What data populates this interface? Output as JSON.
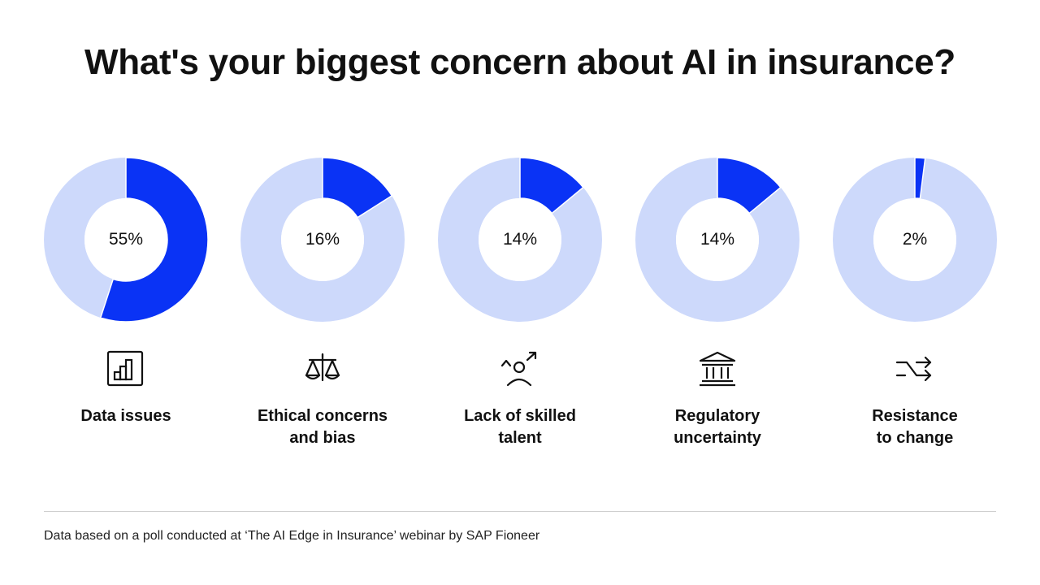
{
  "chart_data": {
    "type": "pie",
    "title": "What's your biggest concern about AI in insurance?",
    "categories": [
      "Data issues",
      "Ethical concerns\nand bias",
      "Lack of skilled\ntalent",
      "Regulatory\nuncertainty",
      "Resistance\nto change"
    ],
    "values": [
      55,
      16,
      14,
      14,
      2
    ],
    "value_labels": [
      "55%",
      "16%",
      "14%",
      "14%",
      "2%"
    ],
    "unit": "%",
    "style": "donut",
    "colors": {
      "accent": "#0a33f5",
      "track": "#cdd9fb"
    },
    "icons": [
      "bar-chart-icon",
      "scales-icon",
      "person-growth-icon",
      "bank-icon",
      "shuffle-icon"
    ]
  },
  "footnote": "Data based on a poll conducted at ‘The AI Edge in Insurance’ webinar by SAP Fioneer"
}
